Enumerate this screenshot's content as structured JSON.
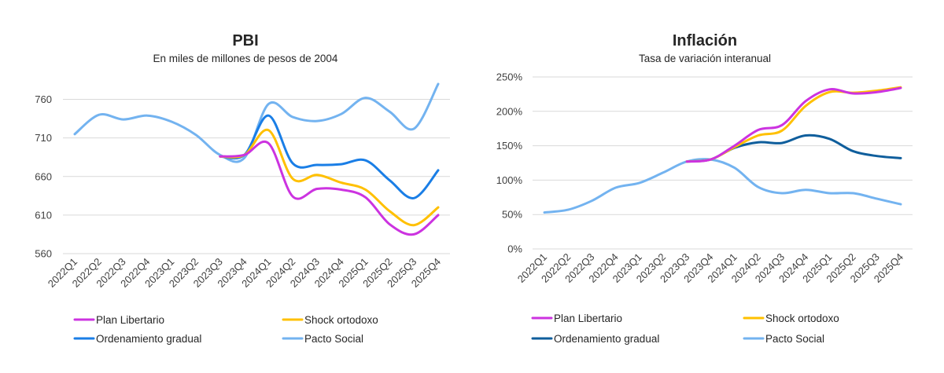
{
  "chart_data": [
    {
      "type": "line",
      "title": "PBI",
      "subtitle": "En miles de millones de pesos de 2004",
      "xlabel": "",
      "ylabel": "",
      "categories": [
        "2022Q1",
        "2022Q2",
        "2022Q3",
        "2022Q4",
        "2023Q1",
        "2023Q2",
        "2023Q3",
        "2023Q4",
        "2024Q1",
        "2024Q2",
        "2024Q3",
        "2024Q4",
        "2025Q1",
        "2025Q2",
        "2025Q3",
        "2025Q4"
      ],
      "ylim": [
        560,
        785
      ],
      "yticks": [
        560,
        610,
        660,
        710,
        760
      ],
      "ytick_labels": [
        "560",
        "610",
        "660",
        "710",
        "760"
      ],
      "grid": true,
      "legend_position": "bottom",
      "series": [
        {
          "name": "Plan Libertario",
          "color": "#cc33e0",
          "values": [
            null,
            null,
            null,
            null,
            null,
            null,
            686,
            688,
            703,
            634,
            644,
            643,
            633,
            598,
            585,
            610
          ]
        },
        {
          "name": "Shock ortodoxo",
          "color": "#ffc000",
          "values": [
            null,
            null,
            null,
            null,
            null,
            null,
            686,
            688,
            720,
            657,
            662,
            652,
            643,
            615,
            597,
            620
          ]
        },
        {
          "name": "Ordenamiento gradual",
          "color": "#1a7ee6",
          "values": [
            null,
            null,
            null,
            null,
            null,
            null,
            686,
            688,
            739,
            677,
            675,
            676,
            681,
            655,
            632,
            668
          ]
        },
        {
          "name": "Pacto Social",
          "color": "#73b3f0",
          "values": [
            715,
            740,
            734,
            739,
            731,
            714,
            688,
            684,
            754,
            737,
            732,
            741,
            762,
            744,
            722,
            780
          ]
        }
      ]
    },
    {
      "type": "line",
      "title": "Inflación",
      "subtitle": "Tasa de variación interanual",
      "xlabel": "",
      "ylabel": "",
      "categories": [
        "2022Q1",
        "2022Q2",
        "2022Q3",
        "2022Q4",
        "2023Q1",
        "2023Q2",
        "2023Q3",
        "2023Q4",
        "2024Q1",
        "2024Q2",
        "2024Q3",
        "2024Q4",
        "2025Q1",
        "2025Q2",
        "2025Q3",
        "2025Q4"
      ],
      "ylim": [
        0,
        250
      ],
      "yticks": [
        0,
        50,
        100,
        150,
        200,
        250
      ],
      "ytick_labels": [
        "0%",
        "50%",
        "100%",
        "150%",
        "200%",
        "250%"
      ],
      "grid": true,
      "legend_position": "bottom",
      "series": [
        {
          "name": "Plan Libertario",
          "color": "#cc33e0",
          "values": [
            null,
            null,
            null,
            null,
            null,
            null,
            127,
            130,
            150,
            173,
            180,
            215,
            232,
            226,
            228,
            234
          ]
        },
        {
          "name": "Shock ortodoxo",
          "color": "#ffc000",
          "values": [
            null,
            null,
            null,
            null,
            null,
            null,
            127,
            130,
            148,
            165,
            172,
            208,
            228,
            227,
            230,
            235
          ]
        },
        {
          "name": "Ordenamiento gradual",
          "color": "#0f5e9c",
          "values": [
            null,
            null,
            null,
            null,
            null,
            null,
            127,
            130,
            147,
            155,
            154,
            165,
            160,
            142,
            135,
            132
          ]
        },
        {
          "name": "Pacto Social",
          "color": "#73b3f0",
          "values": [
            53,
            57,
            70,
            89,
            96,
            111,
            127,
            130,
            118,
            90,
            81,
            86,
            81,
            81,
            73,
            65
          ]
        }
      ]
    }
  ]
}
